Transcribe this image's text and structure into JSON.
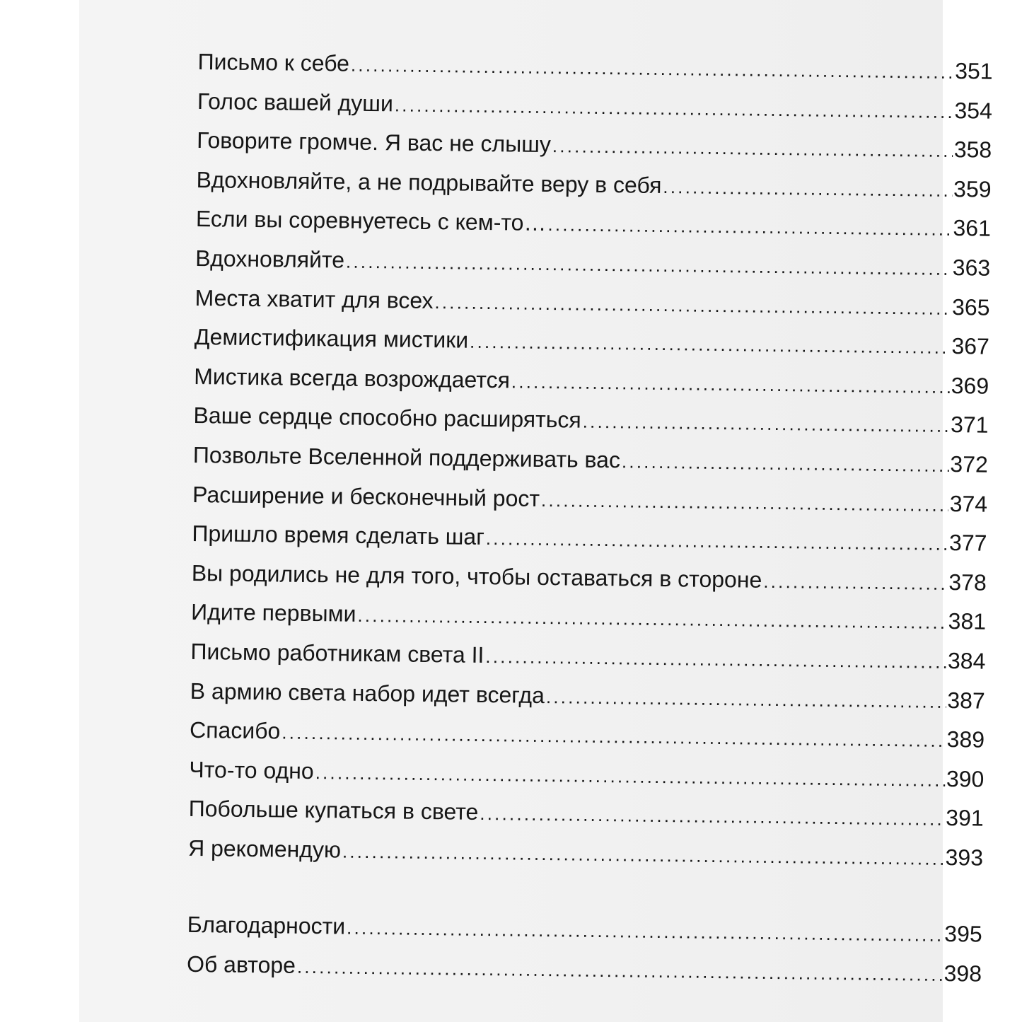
{
  "toc": {
    "entries": [
      {
        "title": "Письмо к себе",
        "page": "351"
      },
      {
        "title": "Голос вашей души",
        "page": "354"
      },
      {
        "title": "Говорите громче. Я вас не слышу",
        "page": "358"
      },
      {
        "title": "Вдохновляйте, а не подрывайте веру в себя",
        "page": "359"
      },
      {
        "title": "Если вы соревнуетесь с кем-то…",
        "page": "361"
      },
      {
        "title": "Вдохновляйте",
        "page": "363"
      },
      {
        "title": "Места хватит для всех",
        "page": "365"
      },
      {
        "title": "Демистификация мистики",
        "page": "367"
      },
      {
        "title": "Мистика всегда возрождается",
        "page": "369"
      },
      {
        "title": "Ваше сердце способно расширяться",
        "page": "371"
      },
      {
        "title": "Позвольте Вселенной поддерживать вас",
        "page": "372"
      },
      {
        "title": "Расширение и бесконечный рост",
        "page": "374"
      },
      {
        "title": "Пришло время сделать шаг",
        "page": "377"
      },
      {
        "title": "Вы родились не для того, чтобы оставаться в стороне",
        "page": "378"
      },
      {
        "title": "Идите первыми",
        "page": "381"
      },
      {
        "title": "Письмо работникам света II",
        "page": "384"
      },
      {
        "title": "В армию света набор идет всегда",
        "page": "387"
      },
      {
        "title": "Спасибо",
        "page": "389"
      },
      {
        "title": "Что-то одно",
        "page": "390"
      },
      {
        "title": "Побольше купаться в свете",
        "page": "391"
      },
      {
        "title": "Я рекомендую",
        "page": "393"
      }
    ],
    "back_matter": [
      {
        "title": "Благодарности",
        "page": "395"
      },
      {
        "title": "Об авторе",
        "page": "398"
      }
    ]
  },
  "colors": {
    "page": "#f2f2f2",
    "text": "#161616",
    "margin": "#ffffff"
  }
}
